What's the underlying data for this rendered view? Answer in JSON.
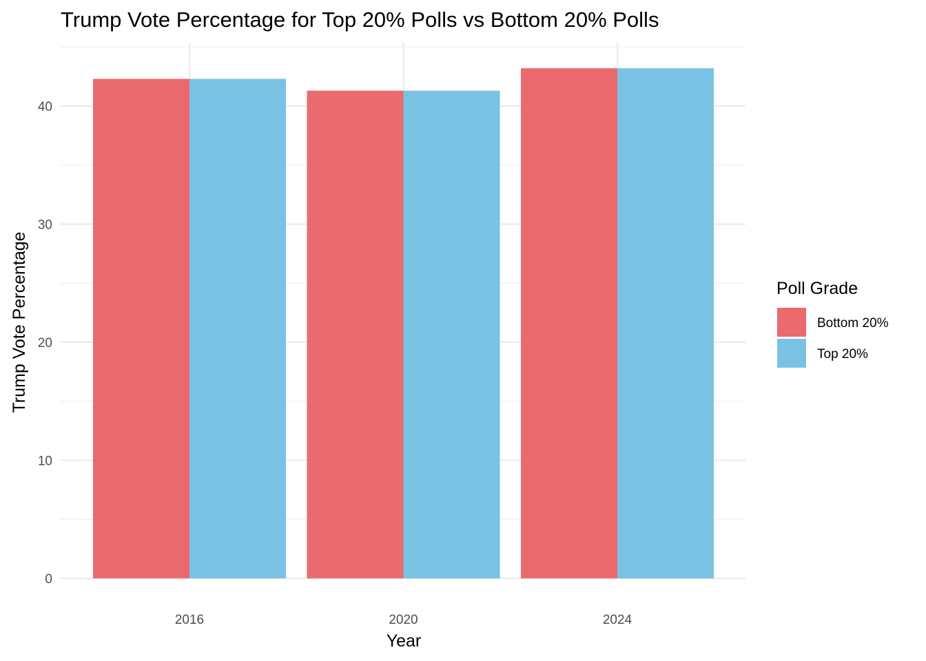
{
  "chart_data": {
    "type": "bar",
    "title": "Trump Vote Percentage for Top 20% Polls vs Bottom 20% Polls",
    "xlabel": "Year",
    "ylabel": "Trump Vote Percentage",
    "categories": [
      "2016",
      "2020",
      "2024"
    ],
    "series": [
      {
        "name": "Bottom 20%",
        "color": "#ea6a6e",
        "values": [
          42.3,
          41.3,
          43.2
        ]
      },
      {
        "name": "Top 20%",
        "color": "#7ac2e4",
        "values": [
          42.3,
          41.3,
          43.2
        ]
      }
    ],
    "ylim": [
      0,
      45.5
    ],
    "yticks": [
      0,
      10,
      20,
      30,
      40
    ],
    "grid": true,
    "legend": {
      "title": "Poll Grade",
      "position": "right"
    }
  }
}
